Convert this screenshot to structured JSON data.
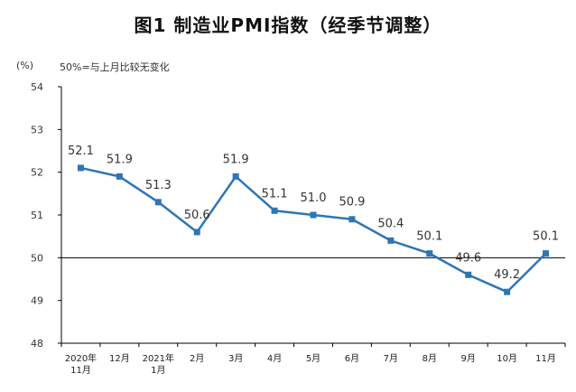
{
  "chart_data": {
    "type": "line",
    "title": "图1 制造业PMI指数（经季节调整）",
    "unit_label": "(%)",
    "note": "50%=与上月比较无变化",
    "categories": [
      [
        "2020年",
        "11月"
      ],
      [
        "12月"
      ],
      [
        "2021年",
        "1月"
      ],
      [
        "2月"
      ],
      [
        "3月"
      ],
      [
        "4月"
      ],
      [
        "5月"
      ],
      [
        "6月"
      ],
      [
        "7月"
      ],
      [
        "8月"
      ],
      [
        "9月"
      ],
      [
        "10月"
      ],
      [
        "11月"
      ]
    ],
    "series": [
      {
        "values": [
          52.1,
          51.9,
          51.3,
          50.6,
          51.9,
          51.1,
          51.0,
          50.9,
          50.4,
          50.1,
          49.6,
          49.2,
          50.1
        ]
      }
    ],
    "data_labels": [
      "52.1",
      "51.9",
      "51.3",
      "50.6",
      "51.9",
      "51.1",
      "51.0",
      "50.9",
      "50.4",
      "50.1",
      "49.6",
      "49.2",
      "50.1"
    ],
    "ylim": [
      48,
      54
    ],
    "yticks": [
      "48",
      "49",
      "50",
      "51",
      "52",
      "53",
      "54"
    ],
    "reference_line": 50,
    "grid": false,
    "colors": {
      "line": "#2e75b6",
      "marker": "#2e75b6",
      "axis": "#000000"
    }
  }
}
